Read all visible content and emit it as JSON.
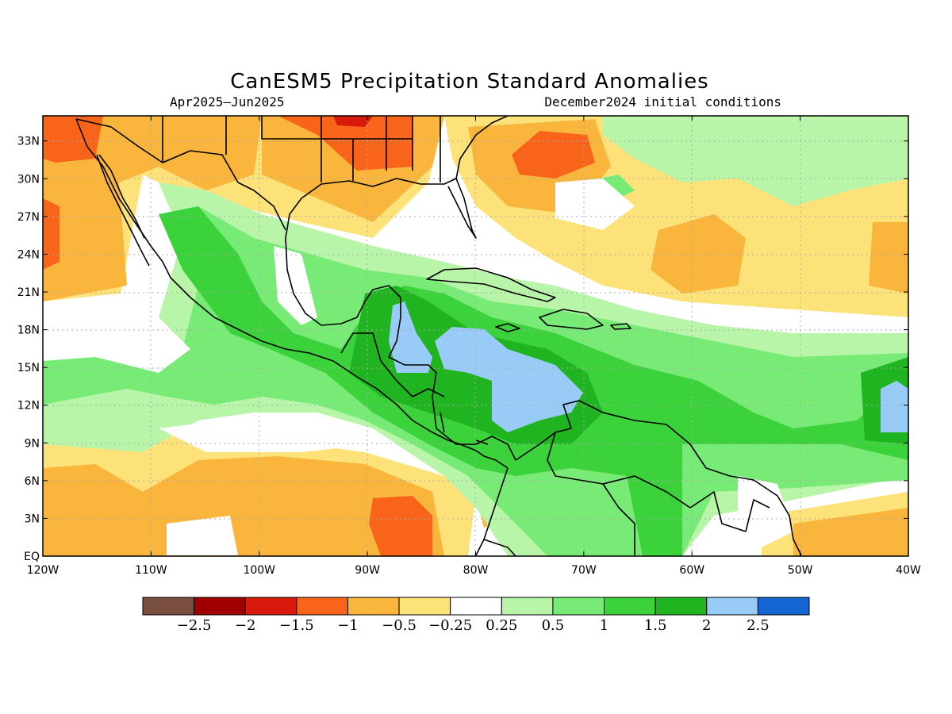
{
  "figure": {
    "title": "CanESM5 Precipitation Standard Anomalies",
    "period": "Apr2025–Jun2025",
    "init": "December2024 initial conditions"
  },
  "map": {
    "lat_labels": [
      "33N",
      "30N",
      "27N",
      "24N",
      "21N",
      "18N",
      "15N",
      "12N",
      "9N",
      "6N",
      "3N",
      "EQ"
    ],
    "lon_labels": [
      "120W",
      "110W",
      "100W",
      "90W",
      "80W",
      "70W",
      "60W",
      "50W",
      "40W"
    ],
    "lon_range": [
      -120,
      -40
    ],
    "lat_range": [
      0,
      35
    ],
    "gridlines": true,
    "background_color": "#ffffff"
  },
  "colorbar": {
    "colors": [
      "#7a4f3f",
      "#a00000",
      "#d81a0c",
      "#f8651a",
      "#f9b53c",
      "#fde27a",
      "#ffffff",
      "#b8f5a8",
      "#78eb76",
      "#3cd23c",
      "#20b420",
      "#98cbf5",
      "#1464d2"
    ],
    "labels": [
      "−2.5",
      "−2",
      "−1.5",
      "−1",
      "−0.5",
      "−0.25",
      "0.25",
      "0.5",
      "1",
      "1.5",
      "2",
      "2.5"
    ]
  }
}
